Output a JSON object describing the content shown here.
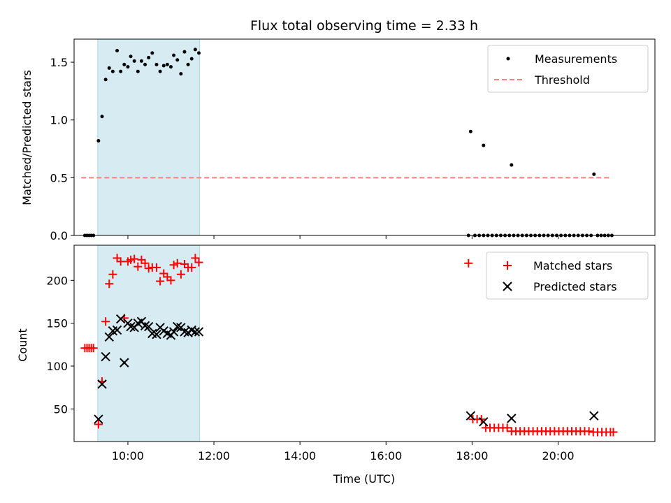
{
  "chart_data": [
    {
      "type": "scatter",
      "title": "Flux total observing time = 2.33 h",
      "xlabel": "",
      "ylabel": "Matched/Predicted stars",
      "xlim": [
        "08:45",
        "22:15"
      ],
      "ylim": [
        0,
        1.7
      ],
      "yticks": [
        0.0,
        0.5,
        1.0,
        1.5
      ],
      "ytick_labels": [
        "0.0",
        "0.5",
        "1.0",
        "1.5"
      ],
      "shaded_span": {
        "start": "09:18",
        "end": "11:40",
        "color": "#add8e6"
      },
      "legend": {
        "position": "upper right"
      },
      "series": [
        {
          "name": "Measurements",
          "kind": "points",
          "color": "#000000",
          "points": [
            [
              "09:00",
              0
            ],
            [
              "09:03",
              0
            ],
            [
              "09:06",
              0
            ],
            [
              "09:09",
              0
            ],
            [
              "09:12",
              0
            ],
            [
              "09:19",
              0.82
            ],
            [
              "09:24",
              1.03
            ],
            [
              "09:29",
              1.35
            ],
            [
              "09:34",
              1.45
            ],
            [
              "09:39",
              1.42
            ],
            [
              "09:45",
              1.6
            ],
            [
              "09:50",
              1.42
            ],
            [
              "09:55",
              1.48
            ],
            [
              "10:00",
              1.46
            ],
            [
              "10:04",
              1.55
            ],
            [
              "10:09",
              1.51
            ],
            [
              "10:14",
              1.42
            ],
            [
              "10:19",
              1.51
            ],
            [
              "10:24",
              1.48
            ],
            [
              "10:29",
              1.54
            ],
            [
              "10:34",
              1.58
            ],
            [
              "10:40",
              1.48
            ],
            [
              "10:45",
              1.42
            ],
            [
              "10:50",
              1.47
            ],
            [
              "10:55",
              1.48
            ],
            [
              "11:00",
              1.46
            ],
            [
              "11:04",
              1.56
            ],
            [
              "11:09",
              1.52
            ],
            [
              "11:14",
              1.4
            ],
            [
              "11:19",
              1.59
            ],
            [
              "11:24",
              1.48
            ],
            [
              "11:29",
              1.53
            ],
            [
              "11:34",
              1.61
            ],
            [
              "11:39",
              1.58
            ],
            [
              "17:55",
              0
            ],
            [
              "17:58",
              0.9
            ],
            [
              "18:04",
              0
            ],
            [
              "18:10",
              0
            ],
            [
              "18:16",
              0
            ],
            [
              "18:22",
              0
            ],
            [
              "18:16",
              0.78
            ],
            [
              "18:28",
              0
            ],
            [
              "18:34",
              0
            ],
            [
              "18:40",
              0
            ],
            [
              "18:46",
              0
            ],
            [
              "18:52",
              0
            ],
            [
              "18:55",
              0.61
            ],
            [
              "18:58",
              0
            ],
            [
              "19:04",
              0
            ],
            [
              "19:10",
              0
            ],
            [
              "19:16",
              0
            ],
            [
              "19:22",
              0
            ],
            [
              "19:28",
              0
            ],
            [
              "19:34",
              0
            ],
            [
              "19:40",
              0
            ],
            [
              "19:46",
              0
            ],
            [
              "19:52",
              0
            ],
            [
              "19:58",
              0
            ],
            [
              "20:04",
              0
            ],
            [
              "20:10",
              0
            ],
            [
              "20:16",
              0
            ],
            [
              "20:22",
              0
            ],
            [
              "20:28",
              0
            ],
            [
              "20:34",
              0
            ],
            [
              "20:40",
              0
            ],
            [
              "20:46",
              0
            ],
            [
              "20:50",
              0.53
            ],
            [
              "20:55",
              0
            ],
            [
              "21:00",
              0
            ],
            [
              "21:05",
              0
            ],
            [
              "21:10",
              0
            ],
            [
              "21:15",
              0
            ]
          ]
        },
        {
          "name": "Threshold",
          "kind": "dashed-line",
          "color": "#ff7f7f",
          "points": [
            [
              "08:55",
              0.5
            ],
            [
              "21:15",
              0.5
            ]
          ]
        }
      ]
    },
    {
      "type": "scatter",
      "title": "",
      "xlabel": "Time (UTC)",
      "ylabel": "Count",
      "xlim": [
        "08:45",
        "22:15"
      ],
      "ylim": [
        12,
        241
      ],
      "yticks": [
        50,
        100,
        150,
        200
      ],
      "ytick_labels": [
        "50",
        "100",
        "150",
        "200"
      ],
      "xticks": [
        "10:00",
        "12:00",
        "14:00",
        "16:00",
        "18:00",
        "20:00"
      ],
      "xtick_labels": [
        "10:00",
        "12:00",
        "14:00",
        "16:00",
        "18:00",
        "20:00"
      ],
      "shaded_span": {
        "start": "09:18",
        "end": "11:40",
        "color": "#add8e6"
      },
      "legend": {
        "position": "upper right"
      },
      "series": [
        {
          "name": "Matched stars",
          "marker": "plus",
          "color": "#ff0000",
          "points": [
            [
              "09:00",
              121
            ],
            [
              "09:03",
              121
            ],
            [
              "09:06",
              121
            ],
            [
              "09:09",
              121
            ],
            [
              "09:12",
              121
            ],
            [
              "09:19",
              32
            ],
            [
              "09:24",
              82
            ],
            [
              "09:29",
              152
            ],
            [
              "09:34",
              196
            ],
            [
              "09:39",
              207
            ],
            [
              "09:45",
              226
            ],
            [
              "09:50",
              222
            ],
            [
              "09:55",
              156
            ],
            [
              "10:00",
              222
            ],
            [
              "10:04",
              224
            ],
            [
              "10:09",
              225
            ],
            [
              "10:14",
              216
            ],
            [
              "10:19",
              224
            ],
            [
              "10:24",
              220
            ],
            [
              "10:29",
              214
            ],
            [
              "10:34",
              215
            ],
            [
              "10:40",
              215
            ],
            [
              "10:45",
              199
            ],
            [
              "10:50",
              208
            ],
            [
              "10:55",
              204
            ],
            [
              "11:00",
              200
            ],
            [
              "11:04",
              218
            ],
            [
              "11:09",
              220
            ],
            [
              "11:14",
              207
            ],
            [
              "11:19",
              219
            ],
            [
              "11:24",
              215
            ],
            [
              "11:29",
              215
            ],
            [
              "11:34",
              226
            ],
            [
              "11:39",
              221
            ],
            [
              "17:55",
              220
            ],
            [
              "18:01",
              38
            ],
            [
              "18:07",
              38
            ],
            [
              "18:13",
              38
            ],
            [
              "18:19",
              28
            ],
            [
              "18:25",
              28
            ],
            [
              "18:31",
              28
            ],
            [
              "18:37",
              28
            ],
            [
              "18:43",
              28
            ],
            [
              "18:49",
              28
            ],
            [
              "18:55",
              24
            ],
            [
              "19:01",
              24
            ],
            [
              "19:07",
              24
            ],
            [
              "19:13",
              24
            ],
            [
              "19:19",
              24
            ],
            [
              "19:25",
              24
            ],
            [
              "19:31",
              24
            ],
            [
              "19:37",
              24
            ],
            [
              "19:43",
              24
            ],
            [
              "19:49",
              24
            ],
            [
              "19:55",
              24
            ],
            [
              "20:01",
              24
            ],
            [
              "20:07",
              24
            ],
            [
              "20:13",
              24
            ],
            [
              "20:19",
              24
            ],
            [
              "20:25",
              24
            ],
            [
              "20:31",
              24
            ],
            [
              "20:37",
              24
            ],
            [
              "20:43",
              24
            ],
            [
              "20:49",
              23
            ],
            [
              "20:55",
              23
            ],
            [
              "21:01",
              23
            ],
            [
              "21:07",
              23
            ],
            [
              "21:13",
              23
            ],
            [
              "21:17",
              23
            ]
          ]
        },
        {
          "name": "Predicted stars",
          "marker": "x",
          "color": "#000000",
          "points": [
            [
              "09:19",
              38
            ],
            [
              "09:24",
              79
            ],
            [
              "09:29",
              111
            ],
            [
              "09:34",
              134
            ],
            [
              "09:39",
              141
            ],
            [
              "09:45",
              142
            ],
            [
              "09:50",
              155
            ],
            [
              "09:55",
              104
            ],
            [
              "10:00",
              150
            ],
            [
              "10:04",
              146
            ],
            [
              "10:09",
              145
            ],
            [
              "10:14",
              150
            ],
            [
              "10:19",
              152
            ],
            [
              "10:24",
              147
            ],
            [
              "10:29",
              146
            ],
            [
              "10:34",
              138
            ],
            [
              "10:40",
              137
            ],
            [
              "10:45",
              145
            ],
            [
              "10:50",
              141
            ],
            [
              "10:55",
              138
            ],
            [
              "11:00",
              136
            ],
            [
              "11:04",
              140
            ],
            [
              "11:09",
              146
            ],
            [
              "11:14",
              145
            ],
            [
              "11:19",
              140
            ],
            [
              "11:24",
              139
            ],
            [
              "11:29",
              142
            ],
            [
              "11:34",
              140
            ],
            [
              "11:39",
              140
            ],
            [
              "17:58",
              42
            ],
            [
              "18:16",
              35
            ],
            [
              "18:55",
              39
            ],
            [
              "20:50",
              42
            ]
          ]
        }
      ]
    }
  ]
}
